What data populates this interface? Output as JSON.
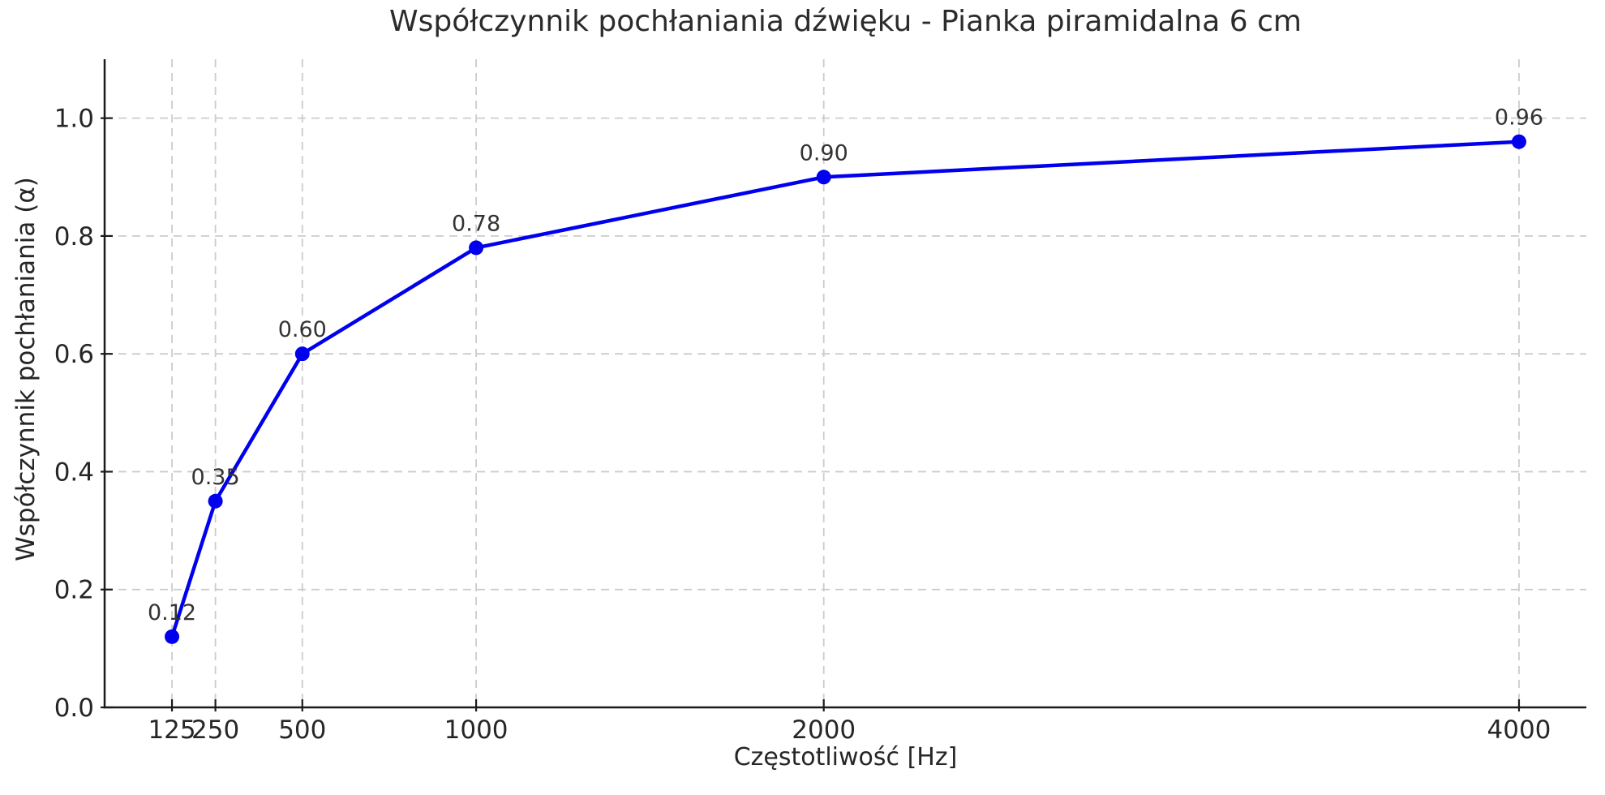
{
  "chart_data": {
    "type": "line",
    "title": "Współczynnik pochłaniania dźwięku - Pianka piramidalna 6 cm",
    "xlabel": "Częstotliwość [Hz]",
    "ylabel": "Współczynnik pochłaniania (α)",
    "x": [
      125,
      250,
      500,
      1000,
      2000,
      4000
    ],
    "y": [
      0.12,
      0.35,
      0.6,
      0.78,
      0.9,
      0.96
    ],
    "point_labels": [
      "0.12",
      "0.35",
      "0.60",
      "0.78",
      "0.90",
      "0.96"
    ],
    "x_tick_labels": [
      "125",
      "250",
      "500",
      "1000",
      "2000",
      "4000"
    ],
    "y_ticks": [
      0.0,
      0.2,
      0.4,
      0.6,
      0.8,
      1.0
    ],
    "y_tick_labels": [
      "0.0",
      "0.2",
      "0.4",
      "0.6",
      "0.8",
      "1.0"
    ],
    "xlim": [
      -68.75,
      4193.75
    ],
    "ylim": [
      0,
      1.1
    ],
    "x_scale": "linear",
    "grid": true,
    "grid_style": "dashed",
    "legend": "none",
    "colors": {
      "line": "#0000ee",
      "marker": "#0000ee",
      "grid": "#cccccc",
      "spine": "#1a1a1a",
      "tick_text": "#262626",
      "point_label_text": "#333333"
    }
  }
}
